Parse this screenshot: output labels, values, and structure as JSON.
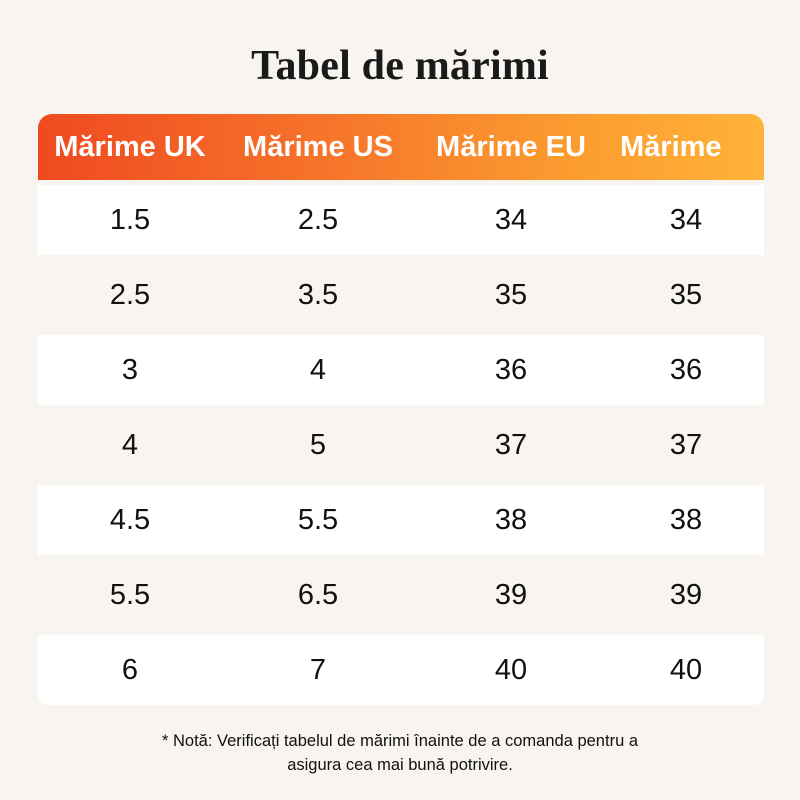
{
  "title": "Tabel de mărimi",
  "table": {
    "headers": [
      "Mărime UK",
      "Mărime US",
      "Mărime EU",
      "Mărime"
    ],
    "rows": [
      [
        "1.5",
        "2.5",
        "34",
        "34"
      ],
      [
        "2.5",
        "3.5",
        "35",
        "35"
      ],
      [
        "3",
        "4",
        "36",
        "36"
      ],
      [
        "4",
        "5",
        "37",
        "37"
      ],
      [
        "4.5",
        "5.5",
        "38",
        "38"
      ],
      [
        "5.5",
        "6.5",
        "39",
        "39"
      ],
      [
        "6",
        "7",
        "40",
        "40"
      ]
    ]
  },
  "note": {
    "line1": "* Notă: Verificați tabelul de mărimi înainte de a comanda pentru a",
    "line2": "asigura cea mai bună potrivire."
  },
  "colors": {
    "background": "#f8f4ef",
    "header_gradient_start": "#ef4a1f",
    "header_gradient_end": "#ffb338",
    "text": "#111111",
    "header_text": "#ffffff"
  }
}
